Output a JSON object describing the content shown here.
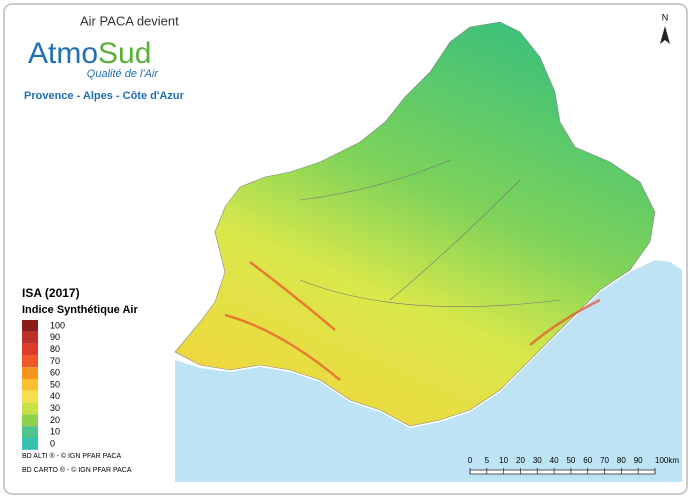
{
  "header": {
    "pre_title": "Air PACA devient",
    "brand_part1": "Atmo",
    "brand_part2": "Sud",
    "tagline": "Qualité de l'Air",
    "region": "Provence - Alpes - Côte d'Azur"
  },
  "north": "N",
  "legend": {
    "title": "ISA (2017)",
    "subtitle": "Indice Synthétique Air",
    "entries": [
      {
        "label": "100",
        "color": "#8b1a1a"
      },
      {
        "label": "90",
        "color": "#c0302a"
      },
      {
        "label": "80",
        "color": "#e03a2a"
      },
      {
        "label": "70",
        "color": "#f05a28"
      },
      {
        "label": "60",
        "color": "#f7941d"
      },
      {
        "label": "50",
        "color": "#fbc02d"
      },
      {
        "label": "40",
        "color": "#f4e04d"
      },
      {
        "label": "30",
        "color": "#c8e04a"
      },
      {
        "label": "20",
        "color": "#8fd14f"
      },
      {
        "label": "10",
        "color": "#4cc48a"
      },
      {
        "label": "0",
        "color": "#35c2b0"
      }
    ]
  },
  "credits": [
    "BD ALTI ® - © IGN PFAR PACA",
    "BD CARTO ® - © IGN PFAR PACA"
  ],
  "scale_bar": {
    "labels": [
      "0",
      "5",
      "10",
      "20",
      "30",
      "40",
      "50",
      "60",
      "70",
      "80",
      "90",
      "100km"
    ]
  }
}
